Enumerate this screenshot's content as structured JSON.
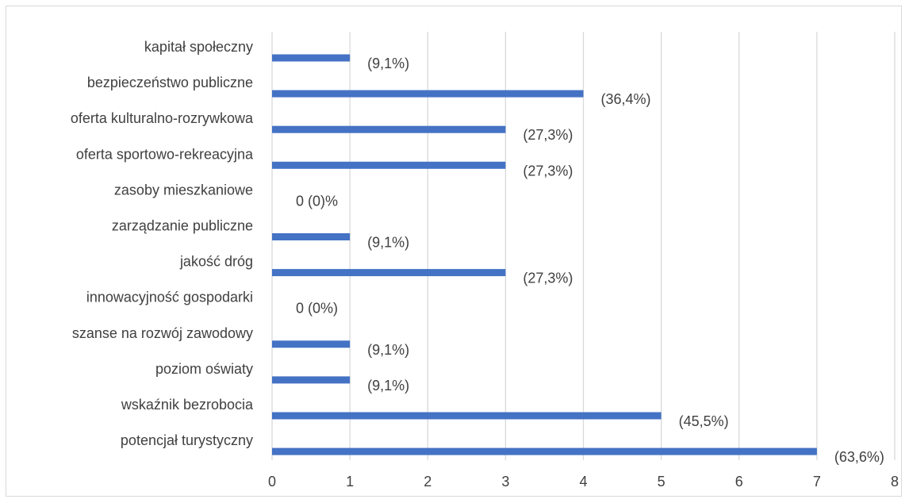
{
  "chart_data": {
    "type": "bar",
    "orientation": "horizontal",
    "categories": [
      "kapitał społeczny",
      "bezpieczeństwo publiczne",
      "oferta kulturalno-rozrywkowa",
      "oferta sportowo-rekreacyjna",
      "zasoby mieszkaniowe",
      "zarządzanie publiczne",
      "jakość dróg",
      "innowacyjność gospodarki",
      "szanse na rozwój zawodowy",
      "poziom oświaty",
      "wskaźnik bezrobocia",
      "potencjał turystyczny"
    ],
    "values": [
      1,
      4,
      3,
      3,
      0,
      1,
      3,
      0,
      1,
      1,
      5,
      7
    ],
    "data_labels": [
      "(9,1%)",
      "(36,4%)",
      "(27,3%)",
      "(27,3%)",
      "0 (0)%",
      "(9,1%)",
      "(27,3%)",
      "0 (0%)",
      "(9,1%)",
      "(9,1%)",
      "(45,5%)",
      "(63,6%)"
    ],
    "xlim": [
      0,
      8
    ],
    "x_ticks": [
      "0",
      "1",
      "2",
      "3",
      "4",
      "5",
      "6",
      "7",
      "8"
    ],
    "grid": "vertical",
    "legend": "none",
    "title": "",
    "xlabel": "",
    "ylabel": "",
    "colors": {
      "bar": "#4472c4",
      "grid": "#d9d9d9",
      "text": "#404040",
      "border": "#d9d9d9"
    }
  }
}
